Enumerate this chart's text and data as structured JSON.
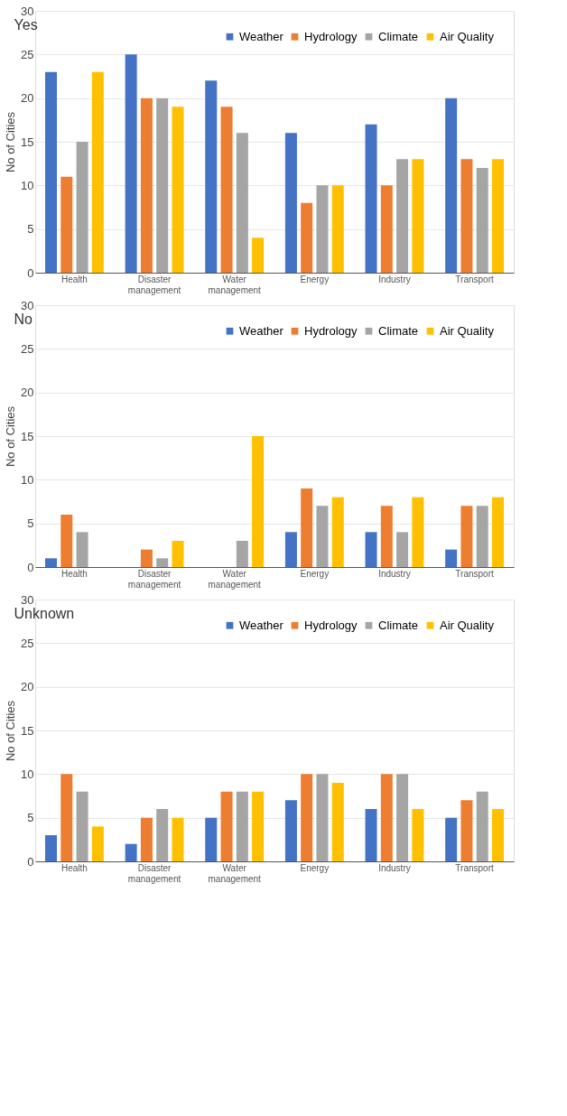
{
  "chart_data": [
    {
      "type": "bar",
      "title": "Yes",
      "ylabel": "No of Cities",
      "categories": [
        "Health",
        "Disaster management",
        "Water management",
        "Energy",
        "Industry",
        "Transport"
      ],
      "ylim": [
        0,
        30
      ],
      "yticks": [
        0,
        5,
        10,
        15,
        20,
        25,
        30
      ],
      "grid": "y",
      "legend": "top right",
      "series": [
        {
          "name": "Weather",
          "color": "#4472c4",
          "values": [
            23,
            25,
            22,
            16,
            17,
            20
          ]
        },
        {
          "name": "Hydrology",
          "color": "#ed7d31",
          "values": [
            11,
            20,
            19,
            8,
            10,
            13
          ]
        },
        {
          "name": "Climate",
          "color": "#a5a5a5",
          "values": [
            15,
            20,
            16,
            10,
            13,
            12
          ]
        },
        {
          "name": "Air Quality",
          "color": "#ffc000",
          "values": [
            23,
            19,
            4,
            10,
            13,
            13
          ]
        }
      ]
    },
    {
      "type": "bar",
      "title": "No",
      "ylabel": "No of Cities",
      "categories": [
        "Health",
        "Disaster management",
        "Water management",
        "Energy",
        "Industry",
        "Transport"
      ],
      "ylim": [
        0,
        30
      ],
      "yticks": [
        0,
        5,
        10,
        15,
        20,
        25,
        30
      ],
      "grid": "y",
      "legend": "top right",
      "series": [
        {
          "name": "Weather",
          "color": "#4472c4",
          "values": [
            1,
            0,
            0,
            4,
            4,
            2
          ]
        },
        {
          "name": "Hydrology",
          "color": "#ed7d31",
          "values": [
            6,
            2,
            0,
            9,
            7,
            7
          ]
        },
        {
          "name": "Climate",
          "color": "#a5a5a5",
          "values": [
            4,
            1,
            3,
            7,
            4,
            7
          ]
        },
        {
          "name": "Air Quality",
          "color": "#ffc000",
          "values": [
            0,
            3,
            15,
            8,
            8,
            8
          ]
        }
      ]
    },
    {
      "type": "bar",
      "title": "Unknown",
      "ylabel": "No of Cities",
      "categories": [
        "Health",
        "Disaster management",
        "Water management",
        "Energy",
        "Industry",
        "Transport"
      ],
      "ylim": [
        0,
        30
      ],
      "yticks": [
        0,
        5,
        10,
        15,
        20,
        25,
        30
      ],
      "grid": "y",
      "legend": "top right",
      "series": [
        {
          "name": "Weather",
          "color": "#4472c4",
          "values": [
            3,
            2,
            5,
            7,
            6,
            5
          ]
        },
        {
          "name": "Hydrology",
          "color": "#ed7d31",
          "values": [
            10,
            5,
            8,
            10,
            10,
            7
          ]
        },
        {
          "name": "Climate",
          "color": "#a5a5a5",
          "values": [
            8,
            6,
            8,
            10,
            10,
            8
          ]
        },
        {
          "name": "Air Quality",
          "color": "#ffc000",
          "values": [
            4,
            5,
            8,
            9,
            6,
            6
          ]
        }
      ]
    }
  ]
}
